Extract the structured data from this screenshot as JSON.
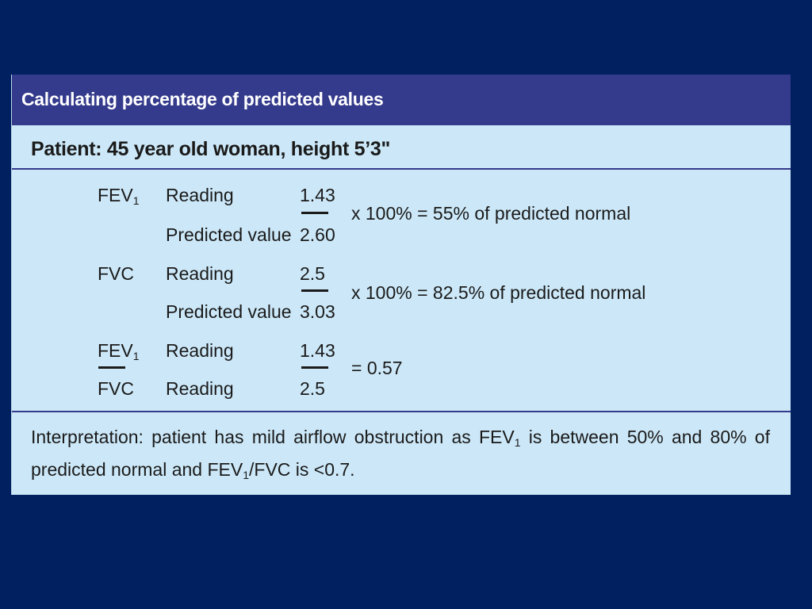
{
  "title": "Calculating percentage of predicted values",
  "patient": "Patient: 45 year old woman, height 5’3\"",
  "rows": {
    "fev1": {
      "label": "FEV",
      "label_sub": "1",
      "reading_label": "Reading",
      "predicted_label": "Predicted value",
      "reading": "1.43",
      "predicted": "2.60",
      "result": "x  100% = 55% of predicted normal"
    },
    "fvc": {
      "label": "FVC",
      "reading_label": "Reading",
      "predicted_label": "Predicted value",
      "reading": "2.5",
      "predicted": "3.03",
      "result": "x  100% = 82.5% of predicted normal"
    },
    "ratio": {
      "numerator_label": "FEV",
      "numerator_sub": "1",
      "denominator_label": "FVC",
      "numerator_reading_label": "Reading",
      "denominator_reading_label": "Reading",
      "numerator": "1.43",
      "denominator": "2.5",
      "result": "=  0.57"
    }
  },
  "interpretation": {
    "part1": "Interpretation: patient has mild airflow obstruction as FEV",
    "sub1": "1",
    "part2": " is between 50% and 80% of predicted normal and FEV",
    "sub2": "1",
    "part3": "/FVC is <0.7."
  },
  "colors": {
    "background": "#002060",
    "header": "#343a8c",
    "panel": "#cce8f8"
  }
}
